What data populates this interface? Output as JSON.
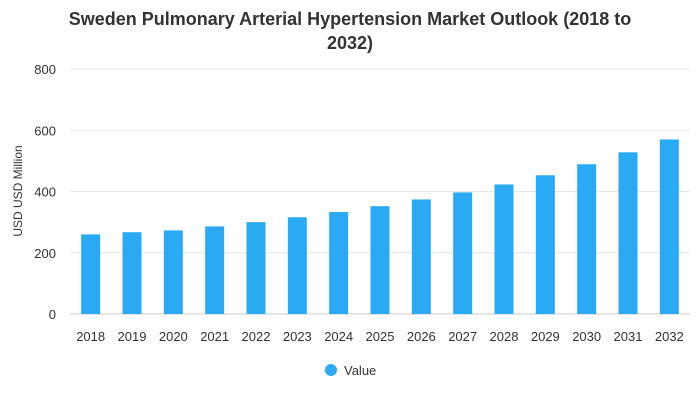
{
  "chart_data": {
    "type": "bar",
    "title_lines": [
      "Sweden Pulmonary Arterial Hypertension Market Outlook (2018 to",
      "2032)"
    ],
    "ylabel": "USD USD Million",
    "xlabel": "",
    "categories": [
      "2018",
      "2019",
      "2020",
      "2021",
      "2022",
      "2023",
      "2024",
      "2025",
      "2026",
      "2027",
      "2028",
      "2029",
      "2030",
      "2031",
      "2032"
    ],
    "series": [
      {
        "name": "Value",
        "color": "#2AAAF5",
        "values": [
          260,
          267,
          273,
          286,
          300,
          316,
          333,
          352,
          374,
          397,
          423,
          453,
          489,
          528,
          570
        ]
      }
    ],
    "ylim": [
      0,
      800
    ],
    "yticks": [
      0,
      200,
      400,
      600,
      800
    ],
    "grid": true,
    "legend_position": "bottom-center"
  }
}
